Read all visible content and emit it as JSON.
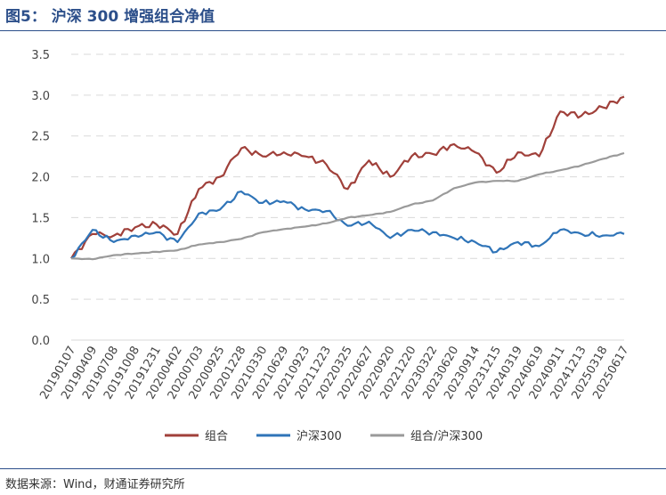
{
  "header": {
    "title": "图5： 沪深 300 增强组合净值"
  },
  "footer": {
    "source": "数据来源：Wind，财通证券研究所"
  },
  "colors": {
    "combo": "#a0403a",
    "hs300": "#2f74b8",
    "ratio": "#9a9a9a",
    "grid": "#d9d9d9",
    "accent": "#2c4f8a"
  },
  "chart_data": {
    "type": "line",
    "ylim": [
      0,
      3.5
    ],
    "yticks": [
      "0.0",
      "0.5",
      "1.0",
      "1.5",
      "2.0",
      "2.5",
      "3.0",
      "3.5"
    ],
    "grid": true,
    "legend": "bottom",
    "categories": [
      "20190107",
      "20190409",
      "20190708",
      "20191008",
      "20191231",
      "20200402",
      "20200703",
      "20200925",
      "20201228",
      "20210330",
      "20210629",
      "20210923",
      "20211223",
      "20220325",
      "20220627",
      "20220920",
      "20221220",
      "20230322",
      "20230620",
      "20230914",
      "20231215",
      "20240319",
      "20240619",
      "20240911",
      "20241213",
      "20250318",
      "20250617"
    ],
    "series": [
      {
        "name": "组合",
        "key": "combo",
        "values": [
          1.0,
          1.3,
          1.28,
          1.38,
          1.42,
          1.3,
          1.85,
          2.0,
          2.35,
          2.25,
          2.3,
          2.25,
          2.15,
          1.85,
          2.2,
          2.0,
          2.25,
          2.28,
          2.4,
          2.3,
          2.05,
          2.3,
          2.25,
          2.8,
          2.75,
          2.85,
          2.98
        ]
      },
      {
        "name": "沪深300",
        "key": "hs300",
        "values": [
          1.0,
          1.35,
          1.2,
          1.28,
          1.32,
          1.2,
          1.55,
          1.6,
          1.82,
          1.68,
          1.7,
          1.6,
          1.58,
          1.4,
          1.45,
          1.25,
          1.35,
          1.32,
          1.25,
          1.2,
          1.08,
          1.2,
          1.15,
          1.35,
          1.3,
          1.28,
          1.3
        ]
      },
      {
        "name": "组合/沪深300",
        "key": "ratio",
        "values": [
          1.0,
          0.99,
          1.04,
          1.06,
          1.08,
          1.1,
          1.17,
          1.2,
          1.24,
          1.32,
          1.36,
          1.39,
          1.43,
          1.5,
          1.53,
          1.57,
          1.66,
          1.71,
          1.86,
          1.93,
          1.95,
          1.95,
          2.03,
          2.08,
          2.14,
          2.22,
          2.29
        ]
      }
    ]
  }
}
